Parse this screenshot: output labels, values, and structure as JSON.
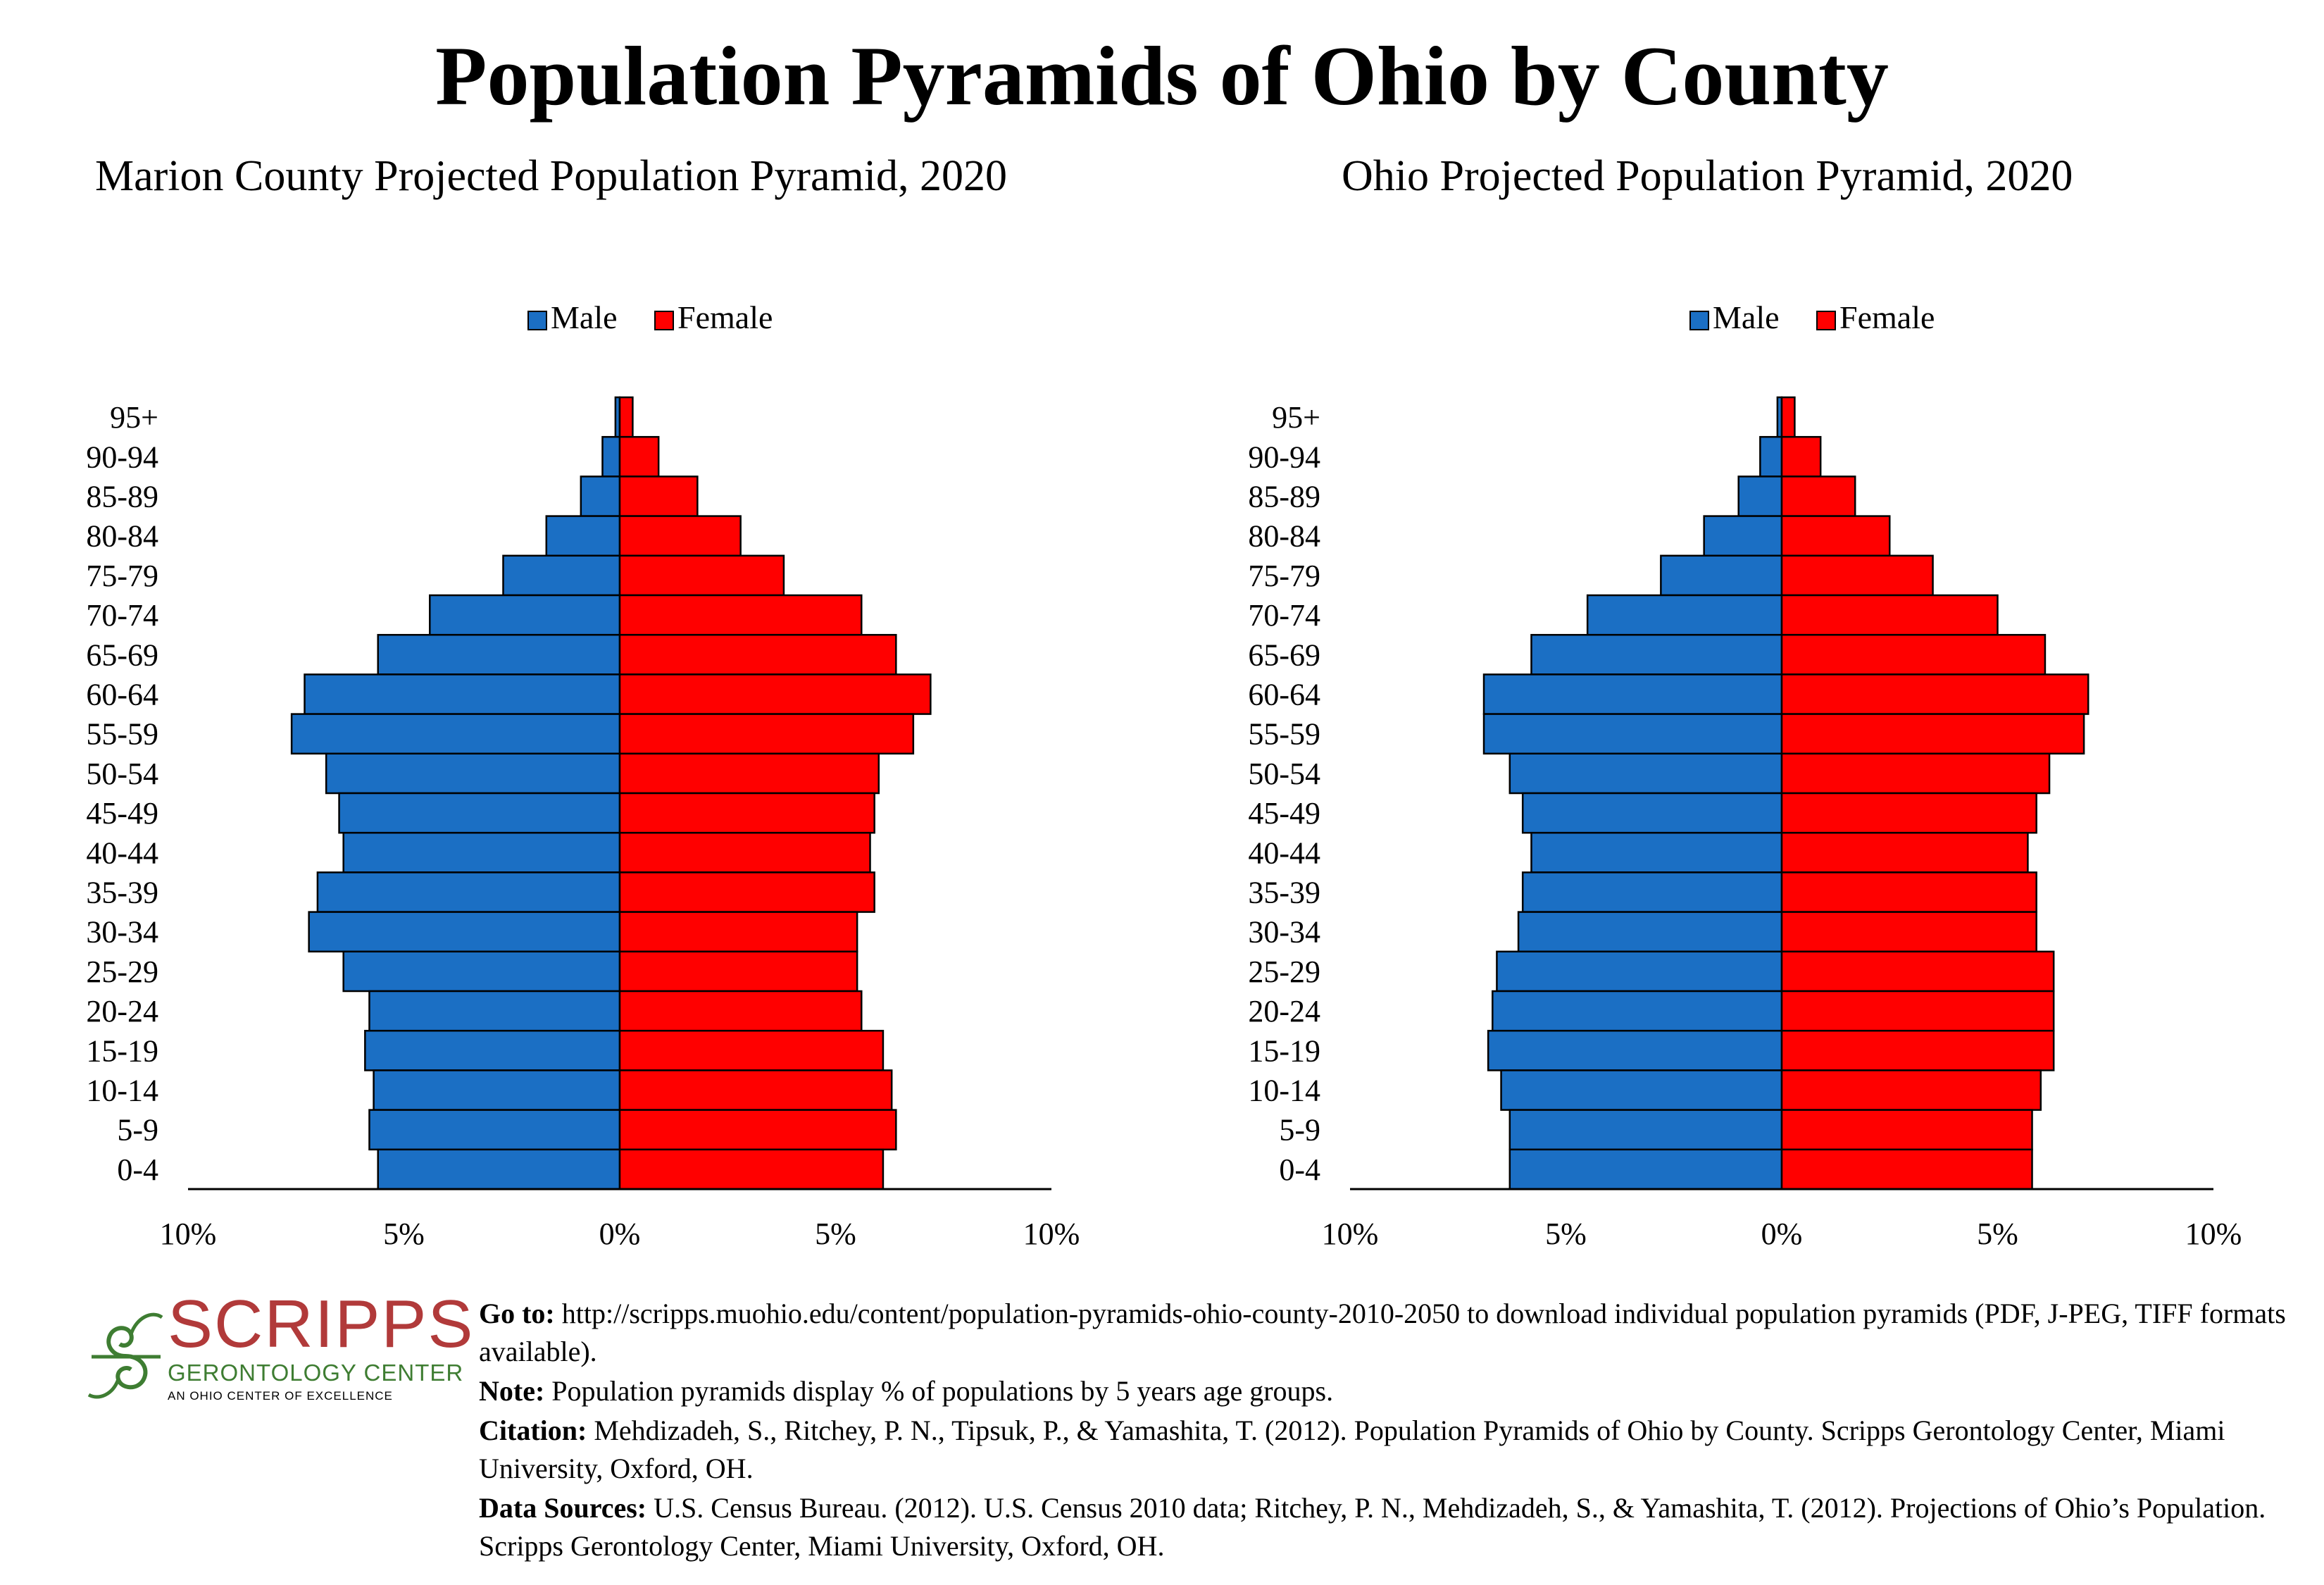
{
  "title": "Population Pyramids of Ohio by County",
  "colors": {
    "male": "#1b6fc4",
    "female": "#ff0000",
    "logo_red": "#b13a3a",
    "logo_green": "#3e7d32"
  },
  "age_groups": [
    "95+",
    "90-94",
    "85-89",
    "80-84",
    "75-79",
    "70-74",
    "65-69",
    "60-64",
    "55-59",
    "50-54",
    "45-49",
    "40-44",
    "35-39",
    "30-34",
    "25-29",
    "20-24",
    "15-19",
    "10-14",
    "5-9",
    "0-4"
  ],
  "x_ticks": [
    "10%",
    "5%",
    "0%",
    "5%",
    "10%"
  ],
  "legend": {
    "male": "Male",
    "female": "Female"
  },
  "chart_data": [
    {
      "type": "bar",
      "orientation": "horizontal-pyramid",
      "title": "Marion County Projected Population Pyramid, 2020",
      "categories": [
        "95+",
        "90-94",
        "85-89",
        "80-84",
        "75-79",
        "70-74",
        "65-69",
        "60-64",
        "55-59",
        "50-54",
        "45-49",
        "40-44",
        "35-39",
        "30-34",
        "25-29",
        "20-24",
        "15-19",
        "10-14",
        "5-9",
        "0-4"
      ],
      "series": [
        {
          "name": "Male",
          "values": [
            0.1,
            0.4,
            0.9,
            1.7,
            2.7,
            4.4,
            5.6,
            7.3,
            7.6,
            6.8,
            6.5,
            6.4,
            7.0,
            7.2,
            6.4,
            5.8,
            5.9,
            5.7,
            5.8,
            5.6
          ]
        },
        {
          "name": "Female",
          "values": [
            0.3,
            0.9,
            1.8,
            2.8,
            3.8,
            5.6,
            6.4,
            7.2,
            6.8,
            6.0,
            5.9,
            5.8,
            5.9,
            5.5,
            5.5,
            5.6,
            6.1,
            6.3,
            6.4,
            6.1
          ]
        }
      ],
      "xlim": [
        -10,
        10
      ],
      "unit": "%",
      "legend_position": "top-center"
    },
    {
      "type": "bar",
      "orientation": "horizontal-pyramid",
      "title": "Ohio Projected Population Pyramid, 2020",
      "categories": [
        "95+",
        "90-94",
        "85-89",
        "80-84",
        "75-79",
        "70-74",
        "65-69",
        "60-64",
        "55-59",
        "50-54",
        "45-49",
        "40-44",
        "35-39",
        "30-34",
        "25-29",
        "20-24",
        "15-19",
        "10-14",
        "5-9",
        "0-4"
      ],
      "series": [
        {
          "name": "Male",
          "values": [
            0.1,
            0.5,
            1.0,
            1.8,
            2.8,
            4.5,
            5.8,
            6.9,
            6.9,
            6.3,
            6.0,
            5.8,
            6.0,
            6.1,
            6.6,
            6.7,
            6.8,
            6.5,
            6.3,
            6.3
          ]
        },
        {
          "name": "Female",
          "values": [
            0.3,
            0.9,
            1.7,
            2.5,
            3.5,
            5.0,
            6.1,
            7.1,
            7.0,
            6.2,
            5.9,
            5.7,
            5.9,
            5.9,
            6.3,
            6.3,
            6.3,
            6.0,
            5.8,
            5.8
          ]
        }
      ],
      "xlim": [
        -10,
        10
      ],
      "unit": "%",
      "legend_position": "top-center"
    }
  ],
  "logo": {
    "word": "SCRIPPS",
    "sub": "GERONTOLOGY CENTER",
    "tag": "AN OHIO CENTER OF EXCELLENCE"
  },
  "notes": {
    "goto_label": "Go to:",
    "goto_text": " http://scripps.muohio.edu/content/population-pyramids-ohio-county-2010-2050 to download individual population pyramids (PDF, J-PEG, TIFF formats available).",
    "note_label": "Note:",
    "note_text": " Population pyramids display % of populations by 5 years age groups.",
    "citation_label": "Citation:",
    "citation_text": " Mehdizadeh, S., Ritchey, P. N., Tipsuk, P., & Yamashita, T. (2012). Population Pyramids of Ohio by County. Scripps Gerontology Center, Miami University, Oxford, OH.",
    "sources_label": "Data Sources:",
    "sources_text": " U.S. Census Bureau. (2012). U.S. Census 2010 data; Ritchey, P. N., Mehdizadeh, S., & Yamashita, T. (2012). Projections of Ohio’s Population. Scripps Gerontology Center, Miami University, Oxford, OH."
  }
}
